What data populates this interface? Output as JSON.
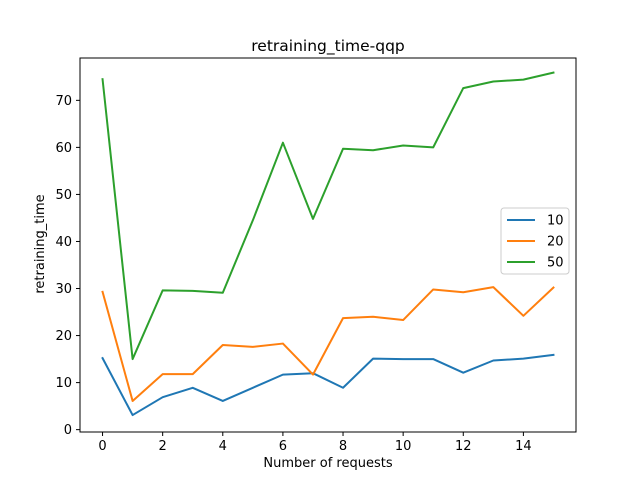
{
  "chart_data": {
    "type": "line",
    "title": "retraining_time-qqp",
    "xlabel": "Number of requests",
    "ylabel": "retraining_time",
    "xlim": [
      -0.75,
      15.75
    ],
    "ylim": [
      -0.5,
      79
    ],
    "xticks": [
      0,
      2,
      4,
      6,
      8,
      10,
      12,
      14
    ],
    "yticks": [
      0,
      10,
      20,
      30,
      40,
      50,
      60,
      70
    ],
    "grid": false,
    "legend_position": "center-right",
    "x": [
      0,
      1,
      2,
      3,
      4,
      5,
      6,
      7,
      8,
      9,
      10,
      11,
      12,
      13,
      14,
      15
    ],
    "series": [
      {
        "name": "10",
        "color": "#1f77b4",
        "values": [
          15.2,
          3.1,
          6.9,
          8.9,
          6.1,
          8.9,
          11.7,
          12.0,
          8.9,
          15.1,
          15.0,
          15.0,
          12.1,
          14.7,
          15.1,
          15.9
        ]
      },
      {
        "name": "20",
        "color": "#ff7f0e",
        "values": [
          29.3,
          6.1,
          11.8,
          11.8,
          18.0,
          17.6,
          18.3,
          11.7,
          23.7,
          24.0,
          23.3,
          29.8,
          29.2,
          30.3,
          24.2,
          30.2
        ]
      },
      {
        "name": "50",
        "color": "#2ca02c",
        "values": [
          74.5,
          15.0,
          29.6,
          29.5,
          29.1,
          44.5,
          61.0,
          44.8,
          59.7,
          59.4,
          60.4,
          60.0,
          72.6,
          74.0,
          74.4,
          75.9
        ]
      }
    ]
  }
}
